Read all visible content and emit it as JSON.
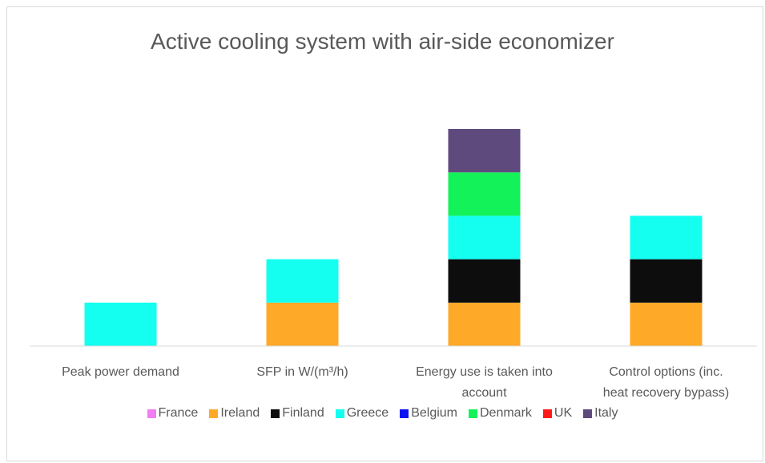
{
  "chart_data": {
    "type": "stacked_bar",
    "title": "Active cooling system with air-side economizer",
    "categories": [
      "Peak power demand",
      "SFP in W/(m³/h)",
      "Energy use is taken into account",
      "Control options (inc. heat recovery bypass)"
    ],
    "series": [
      {
        "name": "France",
        "color": "#f27ef2",
        "values": [
          0,
          0,
          0,
          0
        ]
      },
      {
        "name": "Ireland",
        "color": "#ffa928",
        "values": [
          0,
          1,
          1,
          1
        ]
      },
      {
        "name": "Finland",
        "color": "#0d0d0d",
        "values": [
          0,
          0,
          1,
          1
        ]
      },
      {
        "name": "Greece",
        "color": "#14fff0",
        "values": [
          1,
          1,
          1,
          1
        ]
      },
      {
        "name": "Belgium",
        "color": "#0a14f0",
        "values": [
          0,
          0,
          0,
          0
        ]
      },
      {
        "name": "Denmark",
        "color": "#14f25a",
        "values": [
          0,
          0,
          1,
          0
        ]
      },
      {
        "name": "UK",
        "color": "#ff1a1a",
        "values": [
          0,
          0,
          0,
          0
        ]
      },
      {
        "name": "Italy",
        "color": "#5f4a7e",
        "values": [
          0,
          0,
          1,
          0
        ]
      }
    ]
  }
}
